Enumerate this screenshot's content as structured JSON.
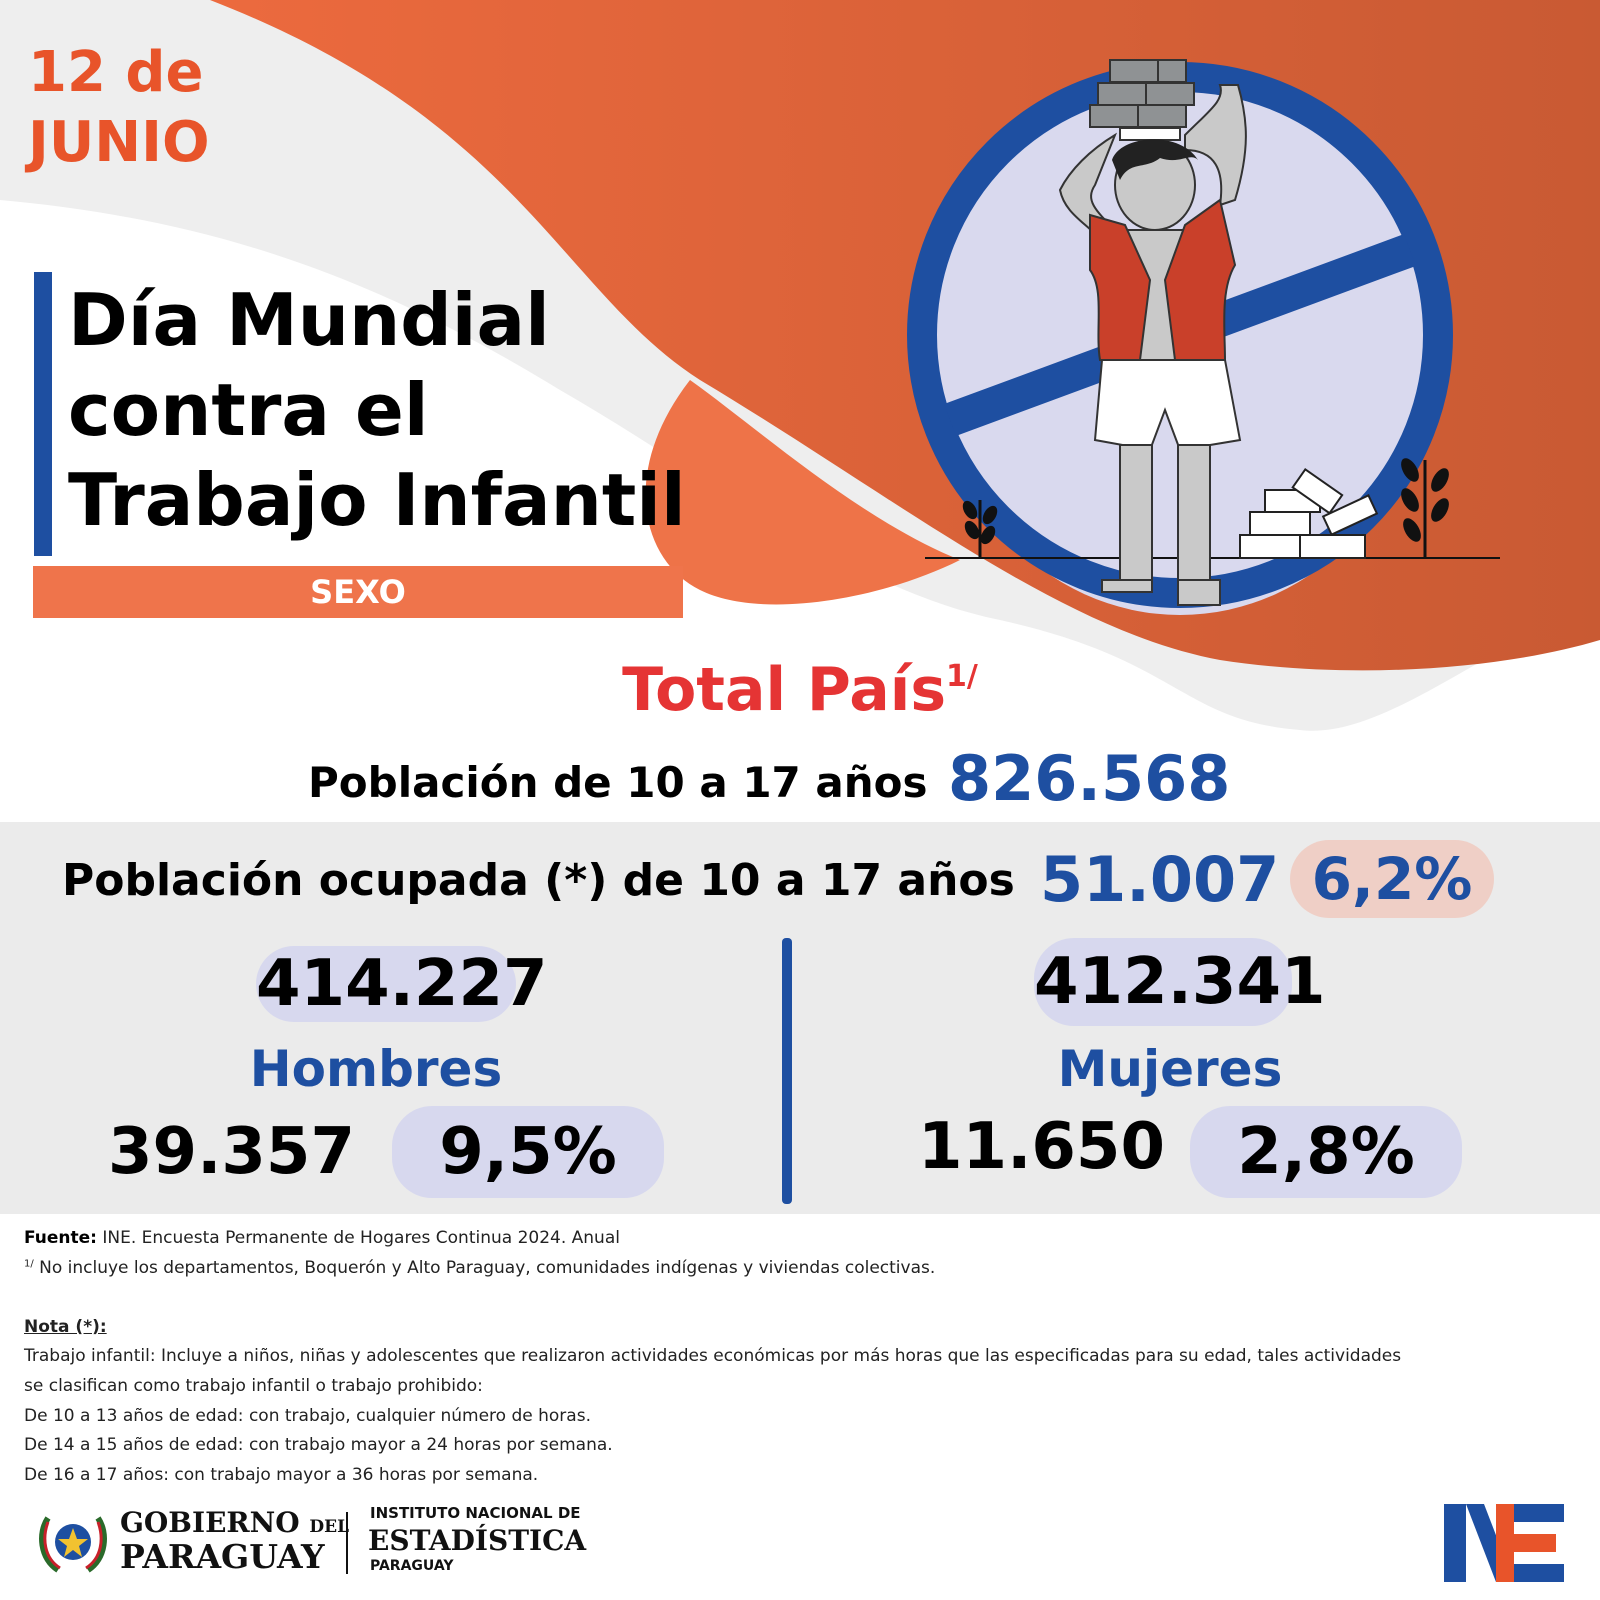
{
  "date": {
    "line1": "12 de",
    "line2": "JUNIO"
  },
  "title": {
    "line1": "Día Mundial",
    "line2": "contra el",
    "line3": "Trabajo Infantil"
  },
  "category_band": "SEXO",
  "total": {
    "heading": "Total País",
    "footnote_mark": "1/"
  },
  "poblacion": {
    "label": "Población de 10 a 17 años",
    "value": "826.568"
  },
  "ocupada": {
    "label": "Población ocupada (*)  de 10 a 17 años",
    "value": "51.007",
    "percent": "6,2%"
  },
  "hombres": {
    "population": "414.227",
    "label": "Hombres",
    "occupied": "39.357",
    "percent": "9,5%"
  },
  "mujeres": {
    "population": "412.341",
    "label": "Mujeres",
    "occupied": "11.650",
    "percent": "2,8%"
  },
  "footer": {
    "fuente_label": "Fuente:",
    "fuente_text": " INE. Encuesta Permanente de Hogares Continua 2024. Anual",
    "note1_mark": "1/",
    "note1_text": " No incluye los departamentos, Boquerón y Alto Paraguay, comunidades indígenas y viviendas colectivas.",
    "nota_heading": "Nota (*):",
    "nota_lines": [
      "Trabajo infantil: Incluye a niños, niñas y adolescentes que realizaron actividades económicas por más horas que las especificadas para su edad, tales actividades",
      "se clasifican como trabajo infantil o trabajo prohibido:",
      "De 10 a 13 años de edad: con trabajo, cualquier número de horas.",
      "De 14 a 15 años de edad: con trabajo mayor a 24 horas por semana.",
      "De 16 a 17 años: con trabajo mayor a 36 horas por semana."
    ]
  },
  "logos": {
    "gobierno_line1": "GOBIERNO",
    "gobierno_del": "DEL",
    "gobierno_line2": "PARAGUAY",
    "ine_line1": "INSTITUTO NACIONAL DE",
    "ine_line2": "ESTADÍSTICA",
    "ine_line3": "PARAGUAY"
  },
  "colors": {
    "orange": "#e8542a",
    "blue": "#1e4fa1",
    "red": "#e53434",
    "lavender": "#d7d8ee"
  },
  "icons": [
    "no-child-labor-sign-icon",
    "child-worker-illustration-icon",
    "bricks-icon",
    "plant-icon",
    "government-seal-icon",
    "ine-logo-icon"
  ]
}
